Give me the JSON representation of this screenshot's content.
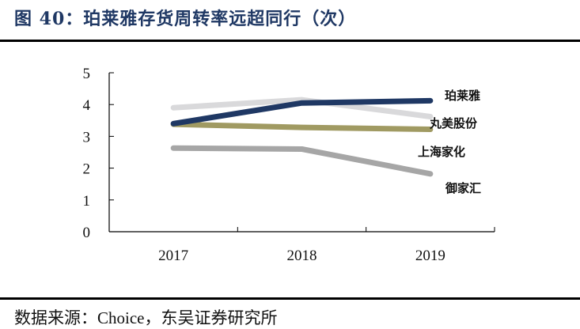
{
  "header": {
    "title": "图 40：珀莱雅存货周转率远超同行（次）"
  },
  "footer": {
    "source": "数据来源：Choice，东吴证券研究所"
  },
  "chart_data": {
    "type": "line",
    "title": "图 40：珀莱雅存货周转率远超同行（次）",
    "xlabel": "",
    "ylabel": "次",
    "categories": [
      "2017",
      "2018",
      "2019"
    ],
    "ylim": [
      0,
      5
    ],
    "yticks": [
      "0",
      "1",
      "2",
      "3",
      "4",
      "5"
    ],
    "grid": false,
    "legend_position": "right, inline labels",
    "series": [
      {
        "name": "珀莱雅",
        "color": "#1f3864",
        "values": [
          3.4,
          4.05,
          4.12
        ]
      },
      {
        "name": "丸美股份",
        "color": "#d9d9db",
        "values": [
          3.9,
          4.15,
          3.62
        ]
      },
      {
        "name": "上海家化",
        "color": "#a09a62",
        "values": [
          3.38,
          3.28,
          3.22
        ]
      },
      {
        "name": "御家汇",
        "color": "#a6a6a6",
        "values": [
          2.63,
          2.6,
          1.82
        ]
      }
    ]
  },
  "legend": {
    "items": [
      {
        "label": "珀莱雅"
      },
      {
        "label": "丸美股份"
      },
      {
        "label": "上海家化"
      },
      {
        "label": "御家汇"
      }
    ]
  }
}
